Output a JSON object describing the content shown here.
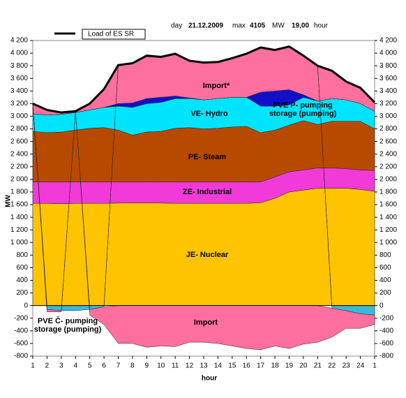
{
  "header": {
    "day_label": "day",
    "day": "21.12.2009",
    "max_label": "max",
    "max": 4105,
    "unit": "MW",
    "hour": "19,00",
    "hour_label": "hour"
  },
  "chart_data": {
    "type": "stacked_area",
    "x_label": "hour",
    "y_label": "MW",
    "categories": [
      "1",
      "2",
      "3",
      "4",
      "5",
      "6",
      "7",
      "8",
      "9",
      "10",
      "11",
      "12",
      "13",
      "14",
      "15",
      "16",
      "17",
      "18",
      "19",
      "20",
      "21",
      "22",
      "23",
      "24",
      "1"
    ],
    "ylim": [
      -800,
      4200
    ],
    "yticks": [
      {
        "value": -800,
        "label": "-800"
      },
      {
        "value": -600,
        "label": "-600"
      },
      {
        "value": -400,
        "label": "-400"
      },
      {
        "value": -200,
        "label": "-200"
      },
      0,
      200,
      400,
      600,
      800,
      {
        "value": 1000,
        "label": "1 000"
      },
      {
        "value": 1200,
        "label": "1 200"
      },
      {
        "value": 1400,
        "label": "1 400"
      },
      {
        "value": 1600,
        "label": "1 600"
      },
      {
        "value": 1800,
        "label": "1 800"
      },
      {
        "value": 2000,
        "label": "2 000"
      },
      {
        "value": 2200,
        "label": "2 200"
      },
      {
        "value": 2400,
        "label": "2 400"
      },
      {
        "value": 2600,
        "label": "2 600"
      },
      {
        "value": 2800,
        "label": "2 800"
      },
      {
        "value": 3000,
        "label": "3 000"
      },
      {
        "value": 3200,
        "label": "3 200"
      },
      {
        "value": 3400,
        "label": "3 400"
      },
      {
        "value": 3600,
        "label": "3 600"
      },
      {
        "value": 3800,
        "label": "3 800"
      },
      {
        "value": 4000,
        "label": "4 000"
      },
      {
        "value": 4200,
        "label": "4 200"
      }
    ],
    "series": [
      {
        "name": "JE- Nuclear",
        "color": "#ffc400",
        "values": [
          1620,
          1620,
          1615,
          1620,
          1620,
          1620,
          1625,
          1625,
          1625,
          1625,
          1620,
          1620,
          1620,
          1620,
          1620,
          1620,
          1630,
          1700,
          1800,
          1830,
          1860,
          1860,
          1860,
          1840,
          1810
        ]
      },
      {
        "name": "ZE- Industrial",
        "color": "#f23ad9",
        "values": [
          340,
          340,
          345,
          340,
          340,
          340,
          335,
          335,
          335,
          335,
          340,
          340,
          340,
          340,
          340,
          340,
          330,
          340,
          320,
          320,
          320,
          320,
          310,
          310,
          330
        ]
      },
      {
        "name": "PE- Steam",
        "color": "#b84a00",
        "values": [
          800,
          780,
          790,
          820,
          850,
          860,
          820,
          740,
          790,
          800,
          850,
          860,
          840,
          850,
          870,
          880,
          780,
          740,
          740,
          780,
          690,
          740,
          750,
          770,
          660
        ]
      },
      {
        "name": "VE- Hydro",
        "color": "#00e4ff",
        "values": [
          280,
          280,
          280,
          280,
          290,
          320,
          380,
          440,
          450,
          460,
          470,
          460,
          460,
          470,
          470,
          460,
          420,
          380,
          320,
          370,
          370,
          360,
          340,
          280,
          280
        ]
      },
      {
        "name": "PVE P- pumping storage (pumping)",
        "color": "#1010c8",
        "values": [
          0,
          0,
          0,
          0,
          0,
          0,
          40,
          70,
          80,
          80,
          40,
          10,
          0,
          0,
          0,
          0,
          220,
          240,
          240,
          40,
          0,
          0,
          0,
          0,
          0
        ]
      },
      {
        "name": "Import*",
        "color": "#ff6fa0",
        "values": [
          160,
          80,
          30,
          20,
          100,
          290,
          610,
          630,
          680,
          640,
          670,
          590,
          590,
          580,
          620,
          690,
          710,
          650,
          685,
          620,
          560,
          440,
          290,
          250,
          140
        ]
      },
      {
        "name": "PVE Č- pumping storage (pumping)",
        "color": "#3cb8d8",
        "values": [
          0,
          -60,
          -80,
          -80,
          -60,
          -20,
          0,
          0,
          0,
          0,
          0,
          0,
          0,
          0,
          0,
          0,
          0,
          0,
          0,
          0,
          0,
          -40,
          -80,
          -130,
          -150
        ]
      },
      {
        "name": "Import",
        "color": "#ff6fa0",
        "values": [
          0,
          -40,
          -20,
          0,
          -90,
          -280,
          -600,
          -600,
          -660,
          -640,
          -650,
          -580,
          -580,
          -600,
          -640,
          -680,
          -700,
          -640,
          -680,
          -610,
          -580,
          -460,
          -280,
          -230,
          -150
        ]
      }
    ],
    "line_series": {
      "name": "Load of ES SR",
      "color": "#000000",
      "values": [
        3200,
        3100,
        3060,
        3080,
        3200,
        3430,
        3810,
        3840,
        3960,
        3940,
        3990,
        3880,
        3850,
        3860,
        3920,
        3990,
        4090,
        4050,
        4105,
        3960,
        3800,
        3720,
        3550,
        3450,
        3220
      ]
    }
  }
}
